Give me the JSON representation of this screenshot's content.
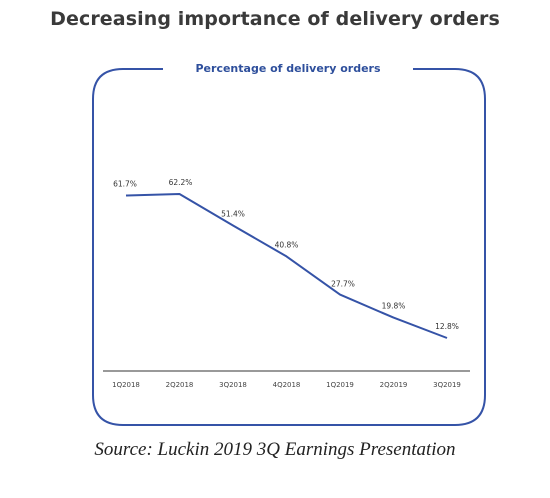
{
  "page": {
    "title": "Decreasing importance of delivery orders",
    "source": "Source: Luckin 2019 3Q Earnings Presentation"
  },
  "colors": {
    "accent": "#3553a7",
    "title_text": "#3a3a3a",
    "axis": "#333333"
  },
  "chart_data": {
    "type": "line",
    "title": "Percentage of delivery orders",
    "xlabel": "",
    "ylabel": "",
    "categories": [
      "1Q2018",
      "2Q2018",
      "3Q2018",
      "4Q2018",
      "1Q2019",
      "2Q2019",
      "3Q2019"
    ],
    "series": [
      {
        "values": [
          61.7,
          62.2,
          51.4,
          40.8,
          27.7,
          19.8,
          12.8
        ]
      }
    ],
    "data_labels": [
      "61.7%",
      "62.2%",
      "51.4%",
      "40.8%",
      "27.7%",
      "19.8%",
      "12.8%"
    ],
    "ylim": [
      0,
      70
    ],
    "grid": false,
    "legend": "none"
  }
}
